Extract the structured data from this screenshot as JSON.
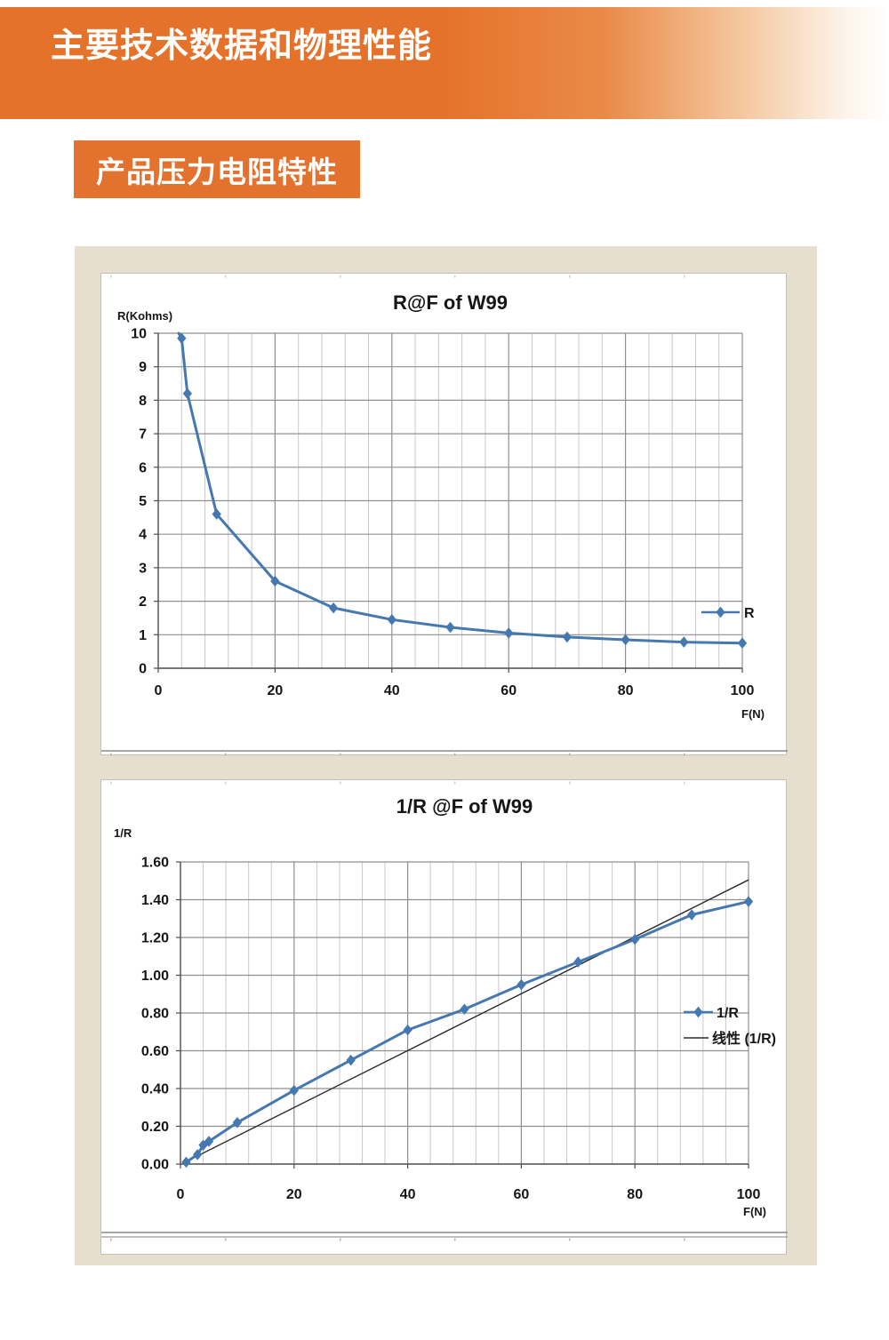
{
  "header": {
    "title": "主要技术数据和物理性能",
    "bg_color": "#e5722b",
    "text_color": "#ffffff"
  },
  "section_badge": {
    "label": "产品压力电阻特性",
    "bg_color": "#e2722e",
    "text_color": "#ffffff"
  },
  "panel": {
    "bg_color": "#e6dfd0"
  },
  "chart_data": [
    {
      "type": "line",
      "title": "R@F of  W99",
      "y_axis_label": "R(Kohms)",
      "x_axis_label": "F(N)",
      "xlim": [
        0,
        100
      ],
      "ylim": [
        0,
        10
      ],
      "x_major_unit": 20,
      "x_minor_unit": 4,
      "x_ticks": [
        0,
        20,
        40,
        60,
        80,
        100
      ],
      "x_tick_labels": [
        "0",
        "20",
        "40",
        "60",
        "80",
        "100"
      ],
      "y_ticks": [
        0,
        1,
        2,
        3,
        4,
        5,
        6,
        7,
        8,
        9,
        10
      ],
      "y_tick_labels": [
        "0",
        "1",
        "2",
        "3",
        "4",
        "5",
        "6",
        "7",
        "8",
        "9",
        "10"
      ],
      "grid": "major-horizontal, major+minor-vertical",
      "legend_position": "right-inside",
      "legend": [
        {
          "label": "R",
          "swatch": "line-diamond",
          "color": "#4678b0"
        }
      ],
      "series": [
        {
          "name": "R",
          "color": "#4678b0",
          "line_entry_from_top": [
            3.5,
            10
          ],
          "points": [
            [
              4,
              9.85
            ],
            [
              5,
              8.2
            ],
            [
              10,
              4.6
            ],
            [
              20,
              2.6
            ],
            [
              30,
              1.8
            ],
            [
              40,
              1.45
            ],
            [
              50,
              1.22
            ],
            [
              60,
              1.05
            ],
            [
              70,
              0.93
            ],
            [
              80,
              0.85
            ],
            [
              90,
              0.78
            ],
            [
              100,
              0.75
            ]
          ]
        }
      ]
    },
    {
      "type": "line",
      "title": "1/R @F of  W99",
      "y_axis_label": "1/R",
      "x_axis_label": "F(N)",
      "xlim": [
        0,
        100
      ],
      "ylim": [
        0,
        1.6
      ],
      "x_major_unit": 20,
      "x_minor_unit": 4,
      "x_ticks": [
        0,
        20,
        40,
        60,
        80,
        100
      ],
      "x_tick_labels": [
        "0",
        "20",
        "40",
        "60",
        "80",
        "100"
      ],
      "y_ticks": [
        0,
        0.2,
        0.4,
        0.6,
        0.8,
        1.0,
        1.2,
        1.4,
        1.6
      ],
      "y_tick_labels": [
        "0.00",
        "0.20",
        "0.40",
        "0.60",
        "0.80",
        "1.00",
        "1.20",
        "1.40",
        "1.60"
      ],
      "grid": "major-horizontal, major+minor-vertical",
      "legend_position": "right-inside",
      "legend": [
        {
          "label": "1/R",
          "swatch": "line-diamond",
          "color": "#4678b0"
        },
        {
          "label": "线性 (1/R)",
          "swatch": "line",
          "color": "#2b2b2b"
        }
      ],
      "series": [
        {
          "name": "1/R",
          "color": "#4678b0",
          "points": [
            [
              1,
              0.01
            ],
            [
              3,
              0.05
            ],
            [
              4,
              0.1
            ],
            [
              5,
              0.12
            ],
            [
              10,
              0.22
            ],
            [
              20,
              0.39
            ],
            [
              30,
              0.55
            ],
            [
              40,
              0.71
            ],
            [
              50,
              0.82
            ],
            [
              60,
              0.95
            ],
            [
              70,
              1.07
            ],
            [
              80,
              1.19
            ],
            [
              90,
              1.32
            ],
            [
              100,
              1.39
            ]
          ]
        }
      ],
      "trendline": {
        "label": "线性 (1/R)",
        "color": "#2b2b2b",
        "x": [
          0.8,
          100
        ],
        "y": [
          0.01,
          1.505
        ]
      }
    }
  ]
}
